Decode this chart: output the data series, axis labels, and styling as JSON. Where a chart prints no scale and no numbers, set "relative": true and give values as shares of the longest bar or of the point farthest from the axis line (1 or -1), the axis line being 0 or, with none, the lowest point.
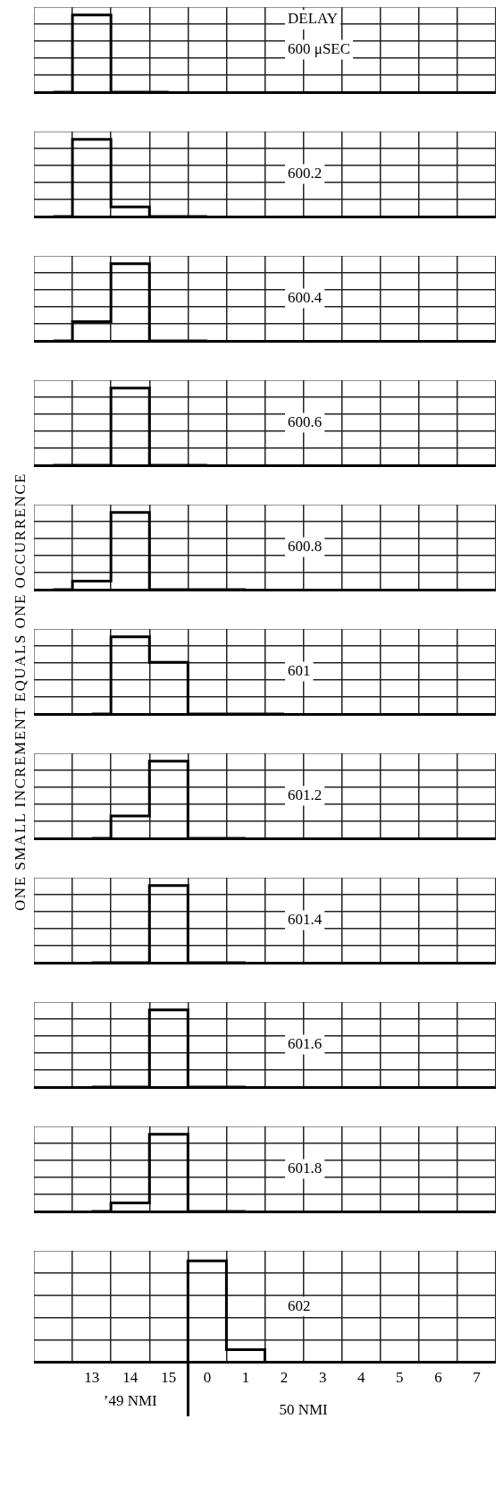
{
  "chart_data": [
    {
      "type": "step",
      "title": "600 μSEC",
      "annotations": [
        "DELAY"
      ],
      "categories": [
        null,
        "13",
        "14",
        "15",
        "0",
        "1",
        "2",
        "3",
        "4",
        "5",
        "6",
        "7"
      ],
      "values": [
        0,
        1,
        0,
        0,
        null,
        null,
        null,
        null,
        null,
        null,
        null,
        null
      ],
      "color": "#000000",
      "relative": true,
      "grid": true,
      "legend": false,
      "tick_labels": false
    },
    {
      "type": "step",
      "title": "600.2",
      "categories": [
        null,
        "13",
        "14",
        "15",
        "0",
        "1",
        "2",
        "3",
        "4",
        "5",
        "6",
        "7"
      ],
      "values": [
        0,
        1,
        0.125,
        0,
        0,
        null,
        null,
        null,
        null,
        null,
        null,
        null
      ],
      "color": "#000000",
      "relative": true,
      "grid": true,
      "legend": false,
      "tick_labels": false
    },
    {
      "type": "step",
      "title": "600.4",
      "categories": [
        null,
        "13",
        "14",
        "15",
        "0",
        "1",
        "2",
        "3",
        "4",
        "5",
        "6",
        "7"
      ],
      "values": [
        0,
        0.25,
        1,
        0,
        0,
        null,
        null,
        null,
        null,
        null,
        null,
        null
      ],
      "color": "#000000",
      "relative": true,
      "grid": true,
      "legend": false,
      "tick_labels": false
    },
    {
      "type": "step",
      "title": "600.6",
      "categories": [
        null,
        "13",
        "14",
        "15",
        "0",
        "1",
        "2",
        "3",
        "4",
        "5",
        "6",
        "7"
      ],
      "values": [
        0,
        0,
        1,
        0,
        0,
        null,
        null,
        null,
        null,
        null,
        null,
        null
      ],
      "color": "#000000",
      "relative": true,
      "grid": true,
      "legend": false,
      "tick_labels": false
    },
    {
      "type": "step",
      "title": "600.8",
      "categories": [
        null,
        "13",
        "14",
        "15",
        "0",
        "1",
        "2",
        "3",
        "4",
        "5",
        "6",
        "7"
      ],
      "values": [
        0,
        0.11,
        1,
        0,
        0,
        0,
        null,
        null,
        null,
        null,
        null,
        null
      ],
      "color": "#000000",
      "relative": true,
      "grid": true,
      "legend": false,
      "tick_labels": false
    },
    {
      "type": "step",
      "title": "601",
      "ylabel": "ONE SMALL INCREMENT EQUALS ONE OCCURRENCE",
      "categories": [
        null,
        "13",
        "14",
        "15",
        "0",
        "1",
        "2",
        "3",
        "4",
        "5",
        "6",
        "7"
      ],
      "values": [
        null,
        0,
        1,
        0.67,
        0,
        0,
        0,
        null,
        null,
        null,
        null,
        null
      ],
      "color": "#000000",
      "relative": true,
      "grid": true,
      "legend": false,
      "tick_labels": false
    },
    {
      "type": "step",
      "title": "601.2",
      "categories": [
        null,
        "13",
        "14",
        "15",
        "0",
        "1",
        "2",
        "3",
        "4",
        "5",
        "6",
        "7"
      ],
      "values": [
        null,
        0,
        0.29,
        1,
        0,
        0,
        null,
        null,
        null,
        null,
        null,
        null
      ],
      "color": "#000000",
      "relative": true,
      "grid": true,
      "legend": false,
      "tick_labels": false
    },
    {
      "type": "step",
      "title": "601.4",
      "categories": [
        null,
        "13",
        "14",
        "15",
        "0",
        "1",
        "2",
        "3",
        "4",
        "5",
        "6",
        "7"
      ],
      "values": [
        null,
        0,
        0,
        1,
        0,
        0,
        null,
        null,
        null,
        null,
        null,
        null
      ],
      "color": "#000000",
      "relative": true,
      "grid": true,
      "legend": false,
      "tick_labels": false
    },
    {
      "type": "step",
      "title": "601.6",
      "categories": [
        null,
        "13",
        "14",
        "15",
        "0",
        "1",
        "2",
        "3",
        "4",
        "5",
        "6",
        "7"
      ],
      "values": [
        null,
        0,
        0,
        1,
        0,
        0,
        null,
        null,
        null,
        null,
        null,
        null
      ],
      "color": "#000000",
      "relative": true,
      "grid": true,
      "legend": false,
      "tick_labels": false
    },
    {
      "type": "step",
      "title": "601.8",
      "categories": [
        null,
        "13",
        "14",
        "15",
        "0",
        "1",
        "2",
        "3",
        "4",
        "5",
        "6",
        "7"
      ],
      "values": [
        null,
        0,
        0.11,
        1,
        0,
        0,
        null,
        null,
        null,
        null,
        null,
        null
      ],
      "color": "#000000",
      "relative": true,
      "grid": true,
      "legend": false,
      "tick_labels": false
    },
    {
      "type": "step",
      "title": "602",
      "annotations": [
        "’49 NMI",
        "50 NMI"
      ],
      "categories": [
        null,
        "13",
        "14",
        "15",
        "0",
        "1",
        "2",
        "3",
        "4",
        "5",
        "6",
        "7"
      ],
      "values": [
        null,
        null,
        0,
        0,
        1,
        0.125,
        0,
        0,
        null,
        null,
        null,
        null
      ],
      "color": "#000000",
      "relative": true,
      "grid": true,
      "legend": false,
      "tick_labels": "x"
    }
  ]
}
